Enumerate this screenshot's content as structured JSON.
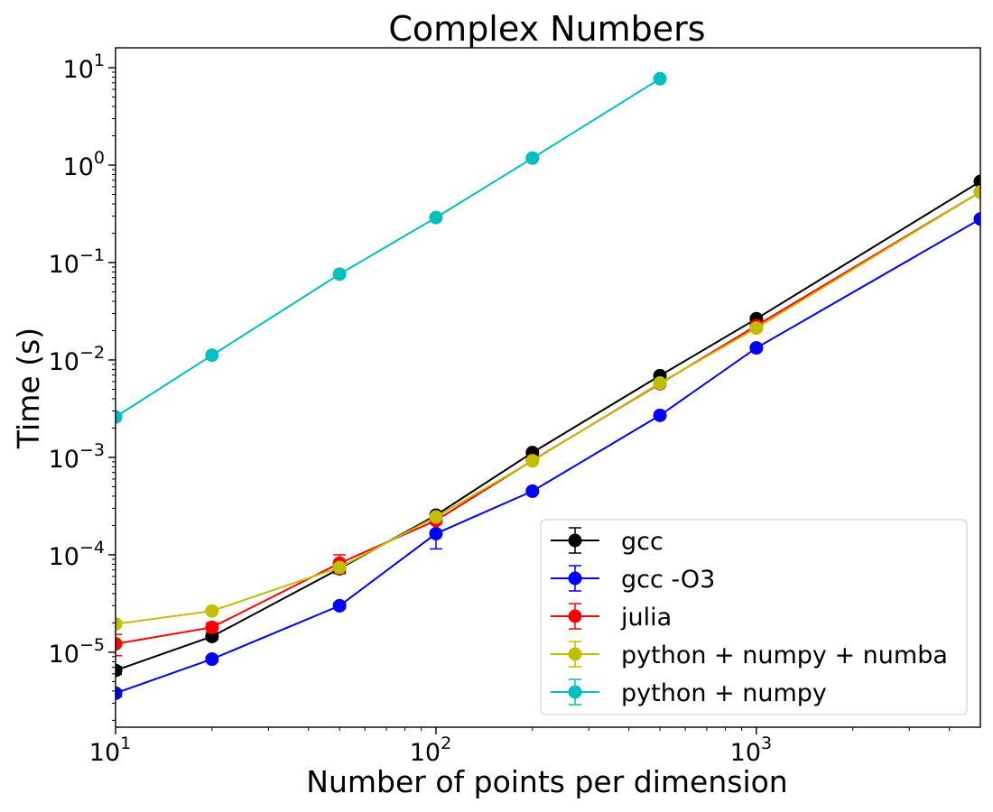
{
  "chart_data": {
    "type": "line",
    "title": "Complex Numbers",
    "xlabel": "Number of points per dimension",
    "ylabel": "Time (s)",
    "xscale": "log",
    "yscale": "log",
    "xlim": [
      10,
      5000
    ],
    "ylim": [
      1.7e-06,
      16
    ],
    "grid": false,
    "legend_position": "bottom-right",
    "x_ticks": [
      {
        "value": 10,
        "base": "10",
        "exp": "1"
      },
      {
        "value": 100,
        "base": "10",
        "exp": "2"
      },
      {
        "value": 1000,
        "base": "10",
        "exp": "3"
      }
    ],
    "y_ticks": [
      {
        "value": 1e-05,
        "base": "10",
        "exp": "−5"
      },
      {
        "value": 0.0001,
        "base": "10",
        "exp": "−4"
      },
      {
        "value": 0.001,
        "base": "10",
        "exp": "−3"
      },
      {
        "value": 0.01,
        "base": "10",
        "exp": "−2"
      },
      {
        "value": 0.1,
        "base": "10",
        "exp": "−1"
      },
      {
        "value": 1,
        "base": "10",
        "exp": "0"
      },
      {
        "value": 10,
        "base": "10",
        "exp": "1"
      }
    ],
    "series": [
      {
        "name": "gcc",
        "color": "#000000",
        "x": [
          10,
          20,
          50,
          100,
          200,
          500,
          1000,
          5000
        ],
        "y": [
          6.5e-06,
          1.45e-05,
          7.2e-05,
          0.000255,
          0.00112,
          0.0069,
          0.0265,
          0.68
        ],
        "err": [
          6e-07,
          1e-06,
          6e-06,
          1e-05,
          4e-05,
          0.0002,
          0.0005,
          0.02
        ]
      },
      {
        "name": "gcc -O3",
        "color": "#0000ff",
        "x": [
          10,
          20,
          50,
          100,
          200,
          500,
          1000,
          5000
        ],
        "y": [
          3.8e-06,
          8.5e-06,
          3e-05,
          0.000165,
          0.00045,
          0.0027,
          0.0133,
          0.28
        ],
        "err": [
          3e-07,
          5e-07,
          2e-06,
          5e-05,
          2e-05,
          0.0001,
          0.0005,
          0.01
        ]
      },
      {
        "name": "julia",
        "color": "#ff0000",
        "x": [
          10,
          20,
          50,
          100,
          200,
          500,
          1000,
          5000
        ],
        "y": [
          1.22e-05,
          1.8e-05,
          8.2e-05,
          0.000225,
          0.00093,
          0.0057,
          0.0225,
          0.53
        ],
        "err": [
          3e-06,
          2e-06,
          1.8e-05,
          1.5e-05,
          4e-05,
          0.0002,
          0.0005,
          0.02
        ]
      },
      {
        "name": "python + numpy + numba",
        "color": "#bfbf00",
        "x": [
          10,
          20,
          50,
          100,
          200,
          500,
          1000,
          5000
        ],
        "y": [
          1.95e-05,
          2.65e-05,
          7.4e-05,
          0.000245,
          0.00092,
          0.0058,
          0.0212,
          0.53
        ],
        "err": [
          1e-06,
          1e-06,
          4e-06,
          1e-05,
          4e-05,
          0.0002,
          0.0005,
          0.02
        ]
      },
      {
        "name": "python + numpy",
        "color": "#00bfbf",
        "x": [
          10,
          20,
          50,
          100,
          200,
          500
        ],
        "y": [
          0.0026,
          0.0112,
          0.076,
          0.29,
          1.18,
          7.7
        ],
        "err": [
          5e-05,
          0.0002,
          0.002,
          0.01,
          0.02,
          0.1
        ]
      }
    ]
  }
}
